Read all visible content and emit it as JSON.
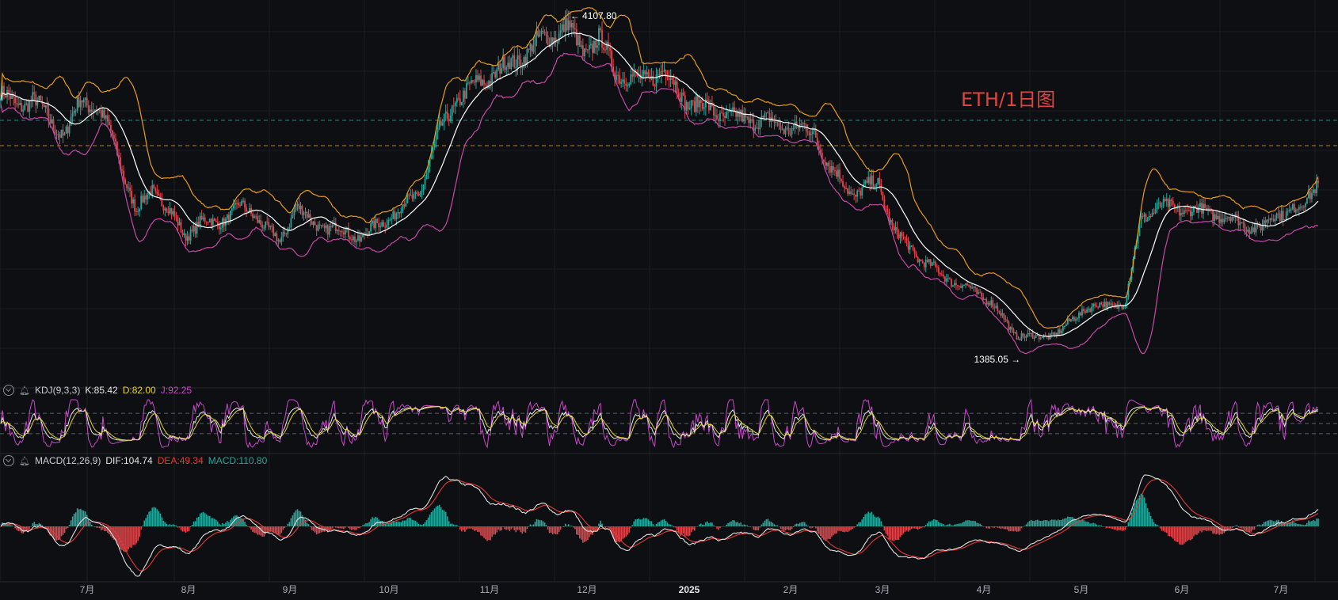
{
  "title": "ETH/1日图",
  "colors": {
    "up": "#26a69a",
    "down": "#e0474c",
    "bg": "#0e0f12",
    "grid": "#1b1d22",
    "bb_outer": "#e79b22",
    "bb_lower": "#c54aa8",
    "bb_mid": "#ffffff",
    "k": "#e6e6e6",
    "d": "#e6d23a",
    "j": "#c849c8",
    "dif": "#e0e0e0",
    "dea": "#e53935"
  },
  "price_labels": {
    "high": "4107.80",
    "low": "1385.05"
  },
  "kdj": {
    "label": "KDJ(9,3,3)",
    "k": "K:85.42",
    "d": "D:82.00",
    "j": "J:92.25"
  },
  "macd": {
    "label": "MACD(12,26,9)",
    "dif": "DIF:104.74",
    "dea": "DEA:49.34",
    "macd": "MACD:110.80"
  },
  "chart_data": {
    "type": "candlestick",
    "xlabels": [
      "7月",
      "8月",
      "9月",
      "10月",
      "11月",
      "12月",
      "2025",
      "2月",
      "3月",
      "4月",
      "5月",
      "6月",
      "7月"
    ],
    "price_anchors": [
      [
        0,
        3520
      ],
      [
        10,
        3400
      ],
      [
        20,
        3480
      ],
      [
        30,
        3300
      ],
      [
        40,
        3180
      ],
      [
        50,
        3450
      ],
      [
        60,
        3420
      ],
      [
        70,
        3150
      ],
      [
        85,
        2550
      ],
      [
        95,
        2750
      ],
      [
        105,
        2580
      ],
      [
        115,
        2360
      ],
      [
        125,
        2480
      ],
      [
        135,
        2460
      ],
      [
        150,
        2600
      ],
      [
        160,
        2530
      ],
      [
        175,
        2300
      ],
      [
        185,
        2620
      ],
      [
        195,
        2460
      ],
      [
        210,
        2420
      ],
      [
        225,
        2350
      ],
      [
        240,
        2480
      ],
      [
        250,
        2580
      ],
      [
        262,
        2700
      ],
      [
        275,
        3200
      ],
      [
        285,
        3450
      ],
      [
        300,
        3600
      ],
      [
        320,
        3750
      ],
      [
        340,
        3950
      ],
      [
        355,
        4050
      ],
      [
        365,
        3850
      ],
      [
        375,
        3950
      ],
      [
        385,
        3700
      ],
      [
        400,
        3600
      ],
      [
        415,
        3700
      ],
      [
        430,
        3450
      ],
      [
        445,
        3380
      ],
      [
        460,
        3310
      ],
      [
        475,
        3300
      ],
      [
        490,
        3250
      ],
      [
        510,
        3200
      ],
      [
        520,
        2900
      ],
      [
        535,
        2700
      ],
      [
        550,
        2800
      ],
      [
        560,
        2400
      ],
      [
        575,
        2200
      ],
      [
        590,
        2050
      ],
      [
        605,
        1950
      ],
      [
        620,
        1850
      ],
      [
        635,
        1580
      ],
      [
        650,
        1540
      ],
      [
        665,
        1600
      ],
      [
        680,
        1790
      ],
      [
        695,
        1800
      ],
      [
        705,
        1830
      ],
      [
        715,
        2500
      ],
      [
        725,
        2600
      ],
      [
        740,
        2580
      ],
      [
        760,
        2550
      ],
      [
        775,
        2480
      ],
      [
        790,
        2420
      ],
      [
        800,
        2550
      ],
      [
        815,
        2580
      ],
      [
        825,
        2800
      ]
    ],
    "n_bars": 827,
    "ylim": [
      1300,
      4200
    ]
  }
}
